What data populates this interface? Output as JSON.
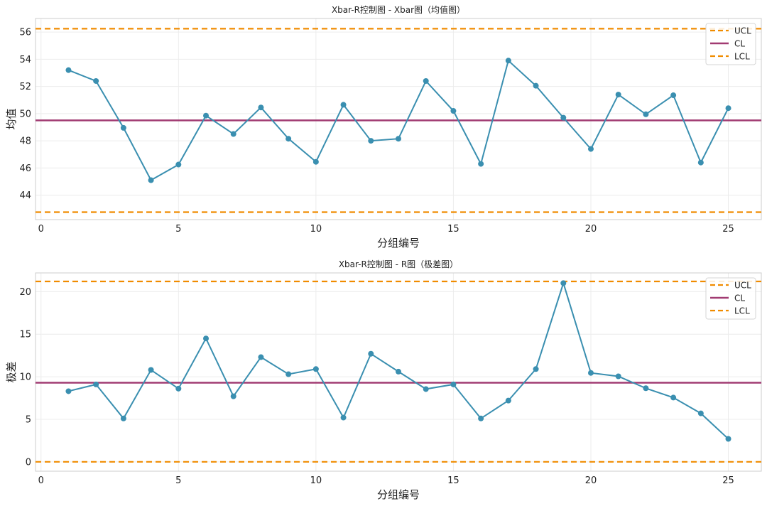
{
  "colors": {
    "series": "#3a8fb0",
    "cl": "#a13b72",
    "limits": "#f08c00",
    "grid": "#ececec",
    "frame": "#cccccc"
  },
  "chart_data": [
    {
      "type": "line",
      "title": "Xbar-R控制图 - Xbar图（均值图）",
      "xlabel": "分组编号",
      "ylabel": "均值",
      "xlim": [
        -0.2,
        26.2
      ],
      "ylim": [
        42.2,
        57.0
      ],
      "xticks": [
        0,
        5,
        10,
        15,
        20,
        25
      ],
      "yticks": [
        44,
        46,
        48,
        50,
        52,
        54,
        56
      ],
      "grid": true,
      "legend_position": "top-right",
      "x": [
        1,
        2,
        3,
        4,
        5,
        6,
        7,
        8,
        9,
        10,
        11,
        12,
        13,
        14,
        15,
        16,
        17,
        18,
        19,
        20,
        21,
        22,
        23,
        24,
        25
      ],
      "values": [
        53.2,
        52.4,
        48.95,
        45.1,
        46.25,
        49.85,
        48.5,
        50.45,
        48.15,
        46.45,
        50.65,
        48.0,
        48.15,
        52.4,
        50.2,
        46.3,
        53.9,
        52.05,
        49.7,
        47.4,
        51.4,
        49.95,
        51.35,
        46.4,
        50.4
      ],
      "limits": [
        {
          "label": "UCL",
          "value": 56.25,
          "style": "dashed"
        },
        {
          "label": "CL",
          "value": 49.5,
          "style": "solid"
        },
        {
          "label": "LCL",
          "value": 42.75,
          "style": "dashed"
        }
      ]
    },
    {
      "type": "line",
      "title": "Xbar-R控制图 - R图（极差图）",
      "xlabel": "分组编号",
      "ylabel": "极差",
      "xlim": [
        -0.2,
        26.2
      ],
      "ylim": [
        -1.1,
        22.2
      ],
      "xticks": [
        0,
        5,
        10,
        15,
        20,
        25
      ],
      "yticks": [
        0,
        5,
        10,
        15,
        20
      ],
      "grid": true,
      "legend_position": "top-right",
      "x": [
        1,
        2,
        3,
        4,
        5,
        6,
        7,
        8,
        9,
        10,
        11,
        12,
        13,
        14,
        15,
        16,
        17,
        18,
        19,
        20,
        21,
        22,
        23,
        24,
        25
      ],
      "values": [
        8.3,
        9.1,
        5.1,
        10.8,
        8.6,
        14.5,
        7.7,
        12.3,
        10.3,
        10.9,
        5.2,
        12.7,
        10.6,
        8.55,
        9.1,
        5.1,
        7.2,
        10.9,
        21.0,
        10.45,
        10.05,
        8.65,
        7.55,
        5.7,
        2.7
      ],
      "limits": [
        {
          "label": "UCL",
          "value": 21.2,
          "style": "dashed"
        },
        {
          "label": "CL",
          "value": 9.3,
          "style": "solid"
        },
        {
          "label": "LCL",
          "value": 0.0,
          "style": "dashed"
        }
      ]
    }
  ]
}
